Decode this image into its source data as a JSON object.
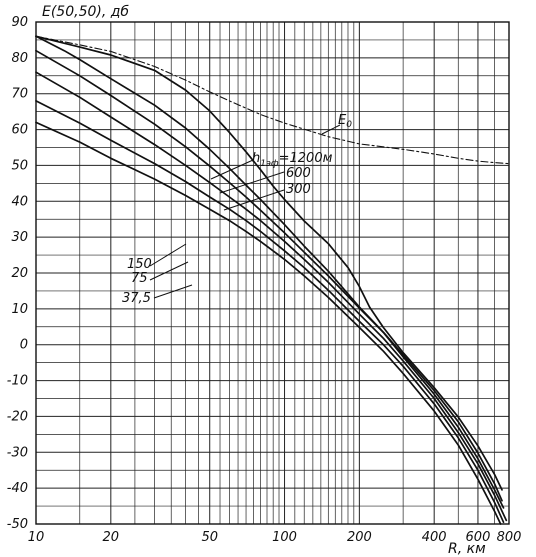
{
  "chart_data": {
    "type": "line",
    "title": "",
    "ylabel": "E(50,50), дб",
    "xlabel": "R, км",
    "xscale": "log",
    "xlim": [
      10,
      800
    ],
    "ylim": [
      -50,
      90
    ],
    "grid": true,
    "xticks": [
      {
        "value": 10,
        "label": "10"
      },
      {
        "value": 20,
        "label": "20"
      },
      {
        "value": 50,
        "label": "50"
      },
      {
        "value": 100,
        "label": "100"
      },
      {
        "value": 200,
        "label": "200"
      },
      {
        "value": 400,
        "label": "400"
      },
      {
        "value": 600,
        "label": "600"
      },
      {
        "value": 800,
        "label": "800"
      }
    ],
    "yticks": [
      {
        "value": 90,
        "label": "90"
      },
      {
        "value": 80,
        "label": "80"
      },
      {
        "value": 70,
        "label": "70"
      },
      {
        "value": 60,
        "label": "60"
      },
      {
        "value": 50,
        "label": "50"
      },
      {
        "value": 40,
        "label": "40"
      },
      {
        "value": 30,
        "label": "30"
      },
      {
        "value": 20,
        "label": "20"
      },
      {
        "value": 10,
        "label": "10"
      },
      {
        "value": 0,
        "label": "0"
      },
      {
        "value": -10,
        "label": "-10"
      },
      {
        "value": -20,
        "label": "-20"
      },
      {
        "value": -30,
        "label": "-30"
      },
      {
        "value": -40,
        "label": "-40"
      },
      {
        "value": -50,
        "label": "-50"
      }
    ],
    "e0_label": "E",
    "e0_sub": "0",
    "h_prefix": "h",
    "h_sub": "1эф",
    "series": [
      {
        "name": "=1200м",
        "dashed": false,
        "points": [
          [
            10,
            86
          ],
          [
            15,
            83
          ],
          [
            20,
            80.8
          ],
          [
            30,
            76.5
          ],
          [
            40,
            71
          ],
          [
            50,
            65.2
          ],
          [
            60,
            59.2
          ],
          [
            70,
            53.8
          ],
          [
            80,
            48.8
          ],
          [
            90,
            44.2
          ],
          [
            100,
            40.5
          ],
          [
            120,
            34.5
          ],
          [
            150,
            28.2
          ],
          [
            180,
            21.5
          ],
          [
            200,
            16.2
          ],
          [
            220,
            10.5
          ],
          [
            250,
            4.8
          ],
          [
            300,
            -2.2
          ],
          [
            400,
            -12
          ],
          [
            500,
            -20.2
          ],
          [
            600,
            -28.2
          ],
          [
            700,
            -36.2
          ],
          [
            750,
            -40.5
          ]
        ]
      },
      {
        "name": "600",
        "dashed": false,
        "points": [
          [
            10,
            86
          ],
          [
            13,
            82
          ],
          [
            15,
            79.5
          ],
          [
            20,
            74.2
          ],
          [
            30,
            66.8
          ],
          [
            40,
            60.4
          ],
          [
            50,
            54.5
          ],
          [
            60,
            49.2
          ],
          [
            70,
            44.5
          ],
          [
            80,
            40.5
          ],
          [
            100,
            33.5
          ],
          [
            120,
            27.5
          ],
          [
            150,
            20.5
          ],
          [
            200,
            10.5
          ],
          [
            250,
            3.5
          ],
          [
            300,
            -2.8
          ],
          [
            400,
            -12.8
          ],
          [
            500,
            -21.5
          ],
          [
            600,
            -30.2
          ],
          [
            700,
            -38.8
          ],
          [
            750,
            -43.5
          ]
        ]
      },
      {
        "name": "300",
        "dashed": false,
        "points": [
          [
            10,
            82
          ],
          [
            15,
            75
          ],
          [
            20,
            69.5
          ],
          [
            30,
            61.5
          ],
          [
            40,
            55.2
          ],
          [
            50,
            49.8
          ],
          [
            60,
            45.2
          ],
          [
            70,
            41.2
          ],
          [
            80,
            37.5
          ],
          [
            100,
            31.2
          ],
          [
            120,
            25.8
          ],
          [
            150,
            19.2
          ],
          [
            200,
            10.2
          ],
          [
            250,
            3.4
          ],
          [
            300,
            -3.4
          ],
          [
            400,
            -13.8
          ],
          [
            500,
            -23
          ],
          [
            600,
            -31.8
          ],
          [
            700,
            -40.5
          ],
          [
            760,
            -45.5
          ]
        ]
      },
      {
        "name": "150",
        "dashed": false,
        "points": [
          [
            10,
            76
          ],
          [
            15,
            69
          ],
          [
            20,
            63.5
          ],
          [
            30,
            55.8
          ],
          [
            40,
            50
          ],
          [
            50,
            45.2
          ],
          [
            60,
            41.2
          ],
          [
            70,
            37.8
          ],
          [
            80,
            34.6
          ],
          [
            100,
            28.8
          ],
          [
            120,
            23.8
          ],
          [
            150,
            17.4
          ],
          [
            200,
            8.5
          ],
          [
            250,
            1.8
          ],
          [
            300,
            -4.5
          ],
          [
            400,
            -15
          ],
          [
            500,
            -24.5
          ],
          [
            600,
            -33.2
          ],
          [
            700,
            -42
          ],
          [
            780,
            -49
          ]
        ]
      },
      {
        "name": "75",
        "dashed": false,
        "points": [
          [
            10,
            68
          ],
          [
            15,
            61.8
          ],
          [
            20,
            57
          ],
          [
            30,
            50.5
          ],
          [
            40,
            45.5
          ],
          [
            50,
            41.2
          ],
          [
            60,
            37.8
          ],
          [
            70,
            34.6
          ],
          [
            80,
            31.6
          ],
          [
            100,
            26.2
          ],
          [
            120,
            21.5
          ],
          [
            150,
            15.2
          ],
          [
            200,
            6.5
          ],
          [
            250,
            0
          ],
          [
            300,
            -6
          ],
          [
            400,
            -16.5
          ],
          [
            500,
            -26
          ],
          [
            600,
            -35
          ],
          [
            700,
            -44
          ],
          [
            760,
            -49.5
          ]
        ]
      },
      {
        "name": "37,5",
        "dashed": false,
        "points": [
          [
            10,
            62
          ],
          [
            15,
            56.5
          ],
          [
            20,
            52
          ],
          [
            30,
            46.2
          ],
          [
            40,
            41.6
          ],
          [
            50,
            37.8
          ],
          [
            60,
            34.6
          ],
          [
            70,
            31.6
          ],
          [
            80,
            28.8
          ],
          [
            100,
            23.8
          ],
          [
            120,
            19.2
          ],
          [
            150,
            13.2
          ],
          [
            200,
            4.8
          ],
          [
            250,
            -1.8
          ],
          [
            300,
            -8
          ],
          [
            400,
            -18.5
          ],
          [
            500,
            -28
          ],
          [
            600,
            -37.5
          ],
          [
            700,
            -46.5
          ],
          [
            740,
            -50
          ]
        ]
      },
      {
        "name": "E0",
        "dashed": true,
        "points": [
          [
            10,
            86
          ],
          [
            15,
            83.6
          ],
          [
            20,
            81.8
          ],
          [
            30,
            77.6
          ],
          [
            40,
            73.8
          ],
          [
            50,
            70.5
          ],
          [
            60,
            68
          ],
          [
            80,
            64.2
          ],
          [
            100,
            61.8
          ],
          [
            150,
            58
          ],
          [
            200,
            56
          ],
          [
            300,
            54.5
          ],
          [
            400,
            53.2
          ],
          [
            500,
            52
          ],
          [
            600,
            51.2
          ],
          [
            700,
            50.8
          ],
          [
            800,
            50.5
          ]
        ]
      }
    ]
  }
}
